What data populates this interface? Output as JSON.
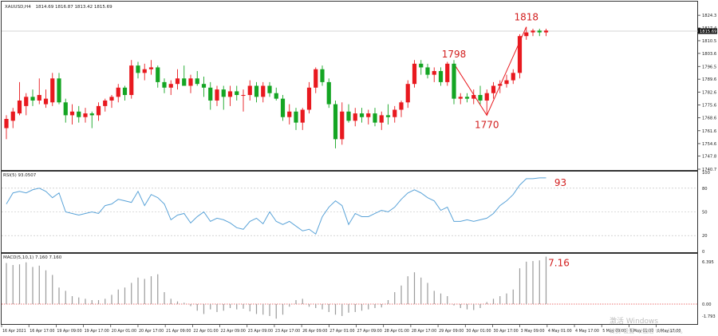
{
  "chart_data": {
    "type": "candlestick",
    "symbol_header": "XAUUSD,H4",
    "ohlc_header": "1814.69 1816.87 1813.42 1815.69",
    "current_price": 1815.69,
    "price_axis": {
      "ylim": [
        1740.7,
        1831.3
      ],
      "ticks": [
        1824.3,
        1817.4,
        1810.5,
        1803.6,
        1796.5,
        1789.6,
        1782.6,
        1775.6,
        1768.6,
        1761.6,
        1754.6,
        1747.8,
        1740.7
      ]
    },
    "candles": [
      {
        "o": 1763,
        "h": 1770,
        "l": 1757,
        "c": 1768
      },
      {
        "o": 1767,
        "h": 1774,
        "l": 1763,
        "c": 1772
      },
      {
        "o": 1771,
        "h": 1788,
        "l": 1770,
        "c": 1778
      },
      {
        "o": 1775,
        "h": 1782,
        "l": 1770,
        "c": 1780
      },
      {
        "o": 1780,
        "h": 1784,
        "l": 1775,
        "c": 1778
      },
      {
        "o": 1778,
        "h": 1790,
        "l": 1776,
        "c": 1781
      },
      {
        "o": 1776,
        "h": 1784,
        "l": 1774,
        "c": 1779
      },
      {
        "o": 1777,
        "h": 1793,
        "l": 1775,
        "c": 1790
      },
      {
        "o": 1790,
        "h": 1793,
        "l": 1776,
        "c": 1777
      },
      {
        "o": 1777,
        "h": 1779,
        "l": 1766,
        "c": 1770
      },
      {
        "o": 1770,
        "h": 1776,
        "l": 1765,
        "c": 1772
      },
      {
        "o": 1772,
        "h": 1775,
        "l": 1766,
        "c": 1769
      },
      {
        "o": 1769,
        "h": 1774,
        "l": 1766,
        "c": 1771
      },
      {
        "o": 1771,
        "h": 1772,
        "l": 1763,
        "c": 1770
      },
      {
        "o": 1770,
        "h": 1777,
        "l": 1767,
        "c": 1775
      },
      {
        "o": 1775,
        "h": 1779,
        "l": 1772,
        "c": 1778
      },
      {
        "o": 1778,
        "h": 1781,
        "l": 1774,
        "c": 1780
      },
      {
        "o": 1780,
        "h": 1787,
        "l": 1777,
        "c": 1785
      },
      {
        "o": 1785,
        "h": 1786,
        "l": 1778,
        "c": 1781
      },
      {
        "o": 1781,
        "h": 1800,
        "l": 1779,
        "c": 1797
      },
      {
        "o": 1797,
        "h": 1799,
        "l": 1790,
        "c": 1793
      },
      {
        "o": 1793,
        "h": 1798,
        "l": 1789,
        "c": 1795
      },
      {
        "o": 1795,
        "h": 1800,
        "l": 1792,
        "c": 1796
      },
      {
        "o": 1796,
        "h": 1797,
        "l": 1785,
        "c": 1788
      },
      {
        "o": 1788,
        "h": 1790,
        "l": 1782,
        "c": 1785
      },
      {
        "o": 1785,
        "h": 1789,
        "l": 1781,
        "c": 1787
      },
      {
        "o": 1787,
        "h": 1795,
        "l": 1784,
        "c": 1790
      },
      {
        "o": 1790,
        "h": 1797,
        "l": 1786,
        "c": 1786
      },
      {
        "o": 1786,
        "h": 1792,
        "l": 1782,
        "c": 1790
      },
      {
        "o": 1790,
        "h": 1794,
        "l": 1786,
        "c": 1787
      },
      {
        "o": 1787,
        "h": 1791,
        "l": 1780,
        "c": 1785
      },
      {
        "o": 1785,
        "h": 1788,
        "l": 1773,
        "c": 1778
      },
      {
        "o": 1778,
        "h": 1786,
        "l": 1775,
        "c": 1784
      },
      {
        "o": 1784,
        "h": 1786,
        "l": 1773,
        "c": 1780
      },
      {
        "o": 1780,
        "h": 1786,
        "l": 1775,
        "c": 1783
      },
      {
        "o": 1783,
        "h": 1786,
        "l": 1778,
        "c": 1781
      },
      {
        "o": 1781,
        "h": 1784,
        "l": 1772,
        "c": 1781
      },
      {
        "o": 1781,
        "h": 1789,
        "l": 1778,
        "c": 1786
      },
      {
        "o": 1786,
        "h": 1788,
        "l": 1777,
        "c": 1780
      },
      {
        "o": 1780,
        "h": 1788,
        "l": 1777,
        "c": 1786
      },
      {
        "o": 1786,
        "h": 1788,
        "l": 1780,
        "c": 1782
      },
      {
        "o": 1782,
        "h": 1785,
        "l": 1778,
        "c": 1779
      },
      {
        "o": 1779,
        "h": 1781,
        "l": 1767,
        "c": 1769
      },
      {
        "o": 1769,
        "h": 1776,
        "l": 1765,
        "c": 1772
      },
      {
        "o": 1772,
        "h": 1774,
        "l": 1762,
        "c": 1766
      },
      {
        "o": 1766,
        "h": 1774,
        "l": 1762,
        "c": 1773
      },
      {
        "o": 1773,
        "h": 1788,
        "l": 1771,
        "c": 1785
      },
      {
        "o": 1785,
        "h": 1796,
        "l": 1782,
        "c": 1795
      },
      {
        "o": 1795,
        "h": 1797,
        "l": 1786,
        "c": 1788
      },
      {
        "o": 1788,
        "h": 1790,
        "l": 1774,
        "c": 1776
      },
      {
        "o": 1776,
        "h": 1778,
        "l": 1752,
        "c": 1757
      },
      {
        "o": 1757,
        "h": 1777,
        "l": 1754,
        "c": 1772
      },
      {
        "o": 1772,
        "h": 1776,
        "l": 1766,
        "c": 1767
      },
      {
        "o": 1767,
        "h": 1774,
        "l": 1764,
        "c": 1771
      },
      {
        "o": 1771,
        "h": 1774,
        "l": 1766,
        "c": 1769
      },
      {
        "o": 1769,
        "h": 1773,
        "l": 1765,
        "c": 1771
      },
      {
        "o": 1771,
        "h": 1774,
        "l": 1764,
        "c": 1766
      },
      {
        "o": 1766,
        "h": 1772,
        "l": 1762,
        "c": 1770
      },
      {
        "o": 1770,
        "h": 1776,
        "l": 1765,
        "c": 1769
      },
      {
        "o": 1769,
        "h": 1775,
        "l": 1766,
        "c": 1773
      },
      {
        "o": 1773,
        "h": 1778,
        "l": 1769,
        "c": 1777
      },
      {
        "o": 1777,
        "h": 1789,
        "l": 1774,
        "c": 1787
      },
      {
        "o": 1787,
        "h": 1800,
        "l": 1785,
        "c": 1798
      },
      {
        "o": 1798,
        "h": 1800,
        "l": 1792,
        "c": 1796
      },
      {
        "o": 1796,
        "h": 1798,
        "l": 1790,
        "c": 1792
      },
      {
        "o": 1792,
        "h": 1796,
        "l": 1788,
        "c": 1794
      },
      {
        "o": 1794,
        "h": 1796,
        "l": 1786,
        "c": 1788
      },
      {
        "o": 1788,
        "h": 1799,
        "l": 1786,
        "c": 1798
      },
      {
        "o": 1798,
        "h": 1800,
        "l": 1776,
        "c": 1779
      },
      {
        "o": 1779,
        "h": 1782,
        "l": 1776,
        "c": 1780
      },
      {
        "o": 1780,
        "h": 1782,
        "l": 1777,
        "c": 1779
      },
      {
        "o": 1779,
        "h": 1784,
        "l": 1776,
        "c": 1781
      },
      {
        "o": 1781,
        "h": 1786,
        "l": 1776,
        "c": 1778
      },
      {
        "o": 1778,
        "h": 1784,
        "l": 1770,
        "c": 1782
      },
      {
        "o": 1782,
        "h": 1788,
        "l": 1779,
        "c": 1786
      },
      {
        "o": 1786,
        "h": 1789,
        "l": 1782,
        "c": 1787
      },
      {
        "o": 1787,
        "h": 1792,
        "l": 1785,
        "c": 1789
      },
      {
        "o": 1789,
        "h": 1795,
        "l": 1787,
        "c": 1793
      },
      {
        "o": 1793,
        "h": 1814,
        "l": 1790,
        "c": 1813
      },
      {
        "o": 1813,
        "h": 1818,
        "l": 1811,
        "c": 1815
      },
      {
        "o": 1815,
        "h": 1817,
        "l": 1813,
        "c": 1816
      },
      {
        "o": 1816,
        "h": 1817,
        "l": 1813,
        "c": 1815
      },
      {
        "o": 1815,
        "h": 1817,
        "l": 1813,
        "c": 1816
      }
    ],
    "zigzag": [
      [
        68,
        1798
      ],
      [
        73,
        1770
      ],
      [
        79,
        1818
      ]
    ],
    "annotations": [
      {
        "text": "1798",
        "bar": 68,
        "price": 1798
      },
      {
        "text": "1770",
        "bar": 73,
        "price": 1770
      },
      {
        "text": "1818",
        "bar": 79,
        "price": 1818
      }
    ],
    "rsi": {
      "label": "RSI(5) 93.0507",
      "levels": [
        80,
        50,
        20
      ],
      "tick_labels": [
        "100",
        "80",
        "50",
        "20",
        "0"
      ],
      "end_annotation": "93",
      "values": [
        60,
        74,
        76,
        74,
        78,
        80,
        76,
        68,
        74,
        50,
        48,
        46,
        48,
        50,
        48,
        58,
        60,
        66,
        64,
        62,
        76,
        58,
        72,
        68,
        60,
        40,
        46,
        48,
        36,
        44,
        50,
        38,
        42,
        40,
        36,
        30,
        28,
        38,
        42,
        35,
        50,
        38,
        34,
        38,
        32,
        26,
        28,
        22,
        44,
        56,
        64,
        58,
        34,
        48,
        44,
        44,
        48,
        52,
        50,
        56,
        66,
        74,
        78,
        74,
        68,
        64,
        52,
        56,
        38,
        38,
        40,
        38,
        40,
        42,
        48,
        58,
        64,
        72,
        84,
        92,
        92,
        93,
        93
      ]
    },
    "macd": {
      "label": "MACD(5,10,1) 7.160 7.160",
      "tick_labels": [
        "6.395",
        "0.00",
        "-1.793"
      ],
      "end_annotation": "7.16",
      "values": [
        6.2,
        5.9,
        6.0,
        6.3,
        5.6,
        5.8,
        5.1,
        4.4,
        2.5,
        2.0,
        1.2,
        1.0,
        0.8,
        0.6,
        0.6,
        0.8,
        1.4,
        2.2,
        2.5,
        3.2,
        4.0,
        3.8,
        4.2,
        4.5,
        1.8,
        0.8,
        0.4,
        0.2,
        -0.3,
        -1.0,
        -1.5,
        -0.8,
        -1.2,
        -1.0,
        -0.6,
        -0.8,
        -0.7,
        -1.1,
        -1.5,
        -1.6,
        -1.8,
        -2.2,
        -1.6,
        -0.4,
        0.6,
        0.8,
        -0.4,
        -0.6,
        -0.8,
        -1.2,
        -1.6,
        -1.8,
        -1.3,
        -1.2,
        -1.0,
        -0.8,
        -0.6,
        -0.5,
        0.6,
        1.8,
        2.8,
        4.2,
        4.8,
        4.0,
        3.2,
        2.0,
        1.6,
        1.2,
        -0.2,
        -0.6,
        -0.8,
        -0.9,
        -0.6,
        0.3,
        0.8,
        1.2,
        1.6,
        2.2,
        5.4,
        6.4,
        6.5,
        6.6,
        7.16
      ]
    },
    "time_labels": [
      "16 Apr 2021",
      "16 Apr 17:00",
      "19 Apr 09:00",
      "19 Apr 17:00",
      "20 Apr 01:00",
      "20 Apr 17:00",
      "21 Apr 09:00",
      "22 Apr 01:00",
      "22 Apr 09:00",
      "23 Apr 09:00",
      "23 Apr 17:00",
      "26 Apr 09:00",
      "27 Apr 01:00",
      "27 Apr 09:00",
      "28 Apr 01:00",
      "28 Apr 17:00",
      "29 Apr 09:00",
      "30 Apr 01:00",
      "30 Apr 17:00",
      "3 May 09:00",
      "4 May 01:00",
      "4 May 17:00",
      "5 May 09:00",
      "6 May 01:00",
      "6 May 17:00"
    ],
    "watermark": [
      "激活 Windows",
      "转到\"设置\"以激活 Windows。"
    ],
    "colors": {
      "bull": "#e8191f",
      "bear": "#14a523",
      "rsi": "#5aa3d8",
      "macd": "#9a9a9a",
      "zigzag": "#e8191f",
      "label": "#d21e1e"
    }
  }
}
